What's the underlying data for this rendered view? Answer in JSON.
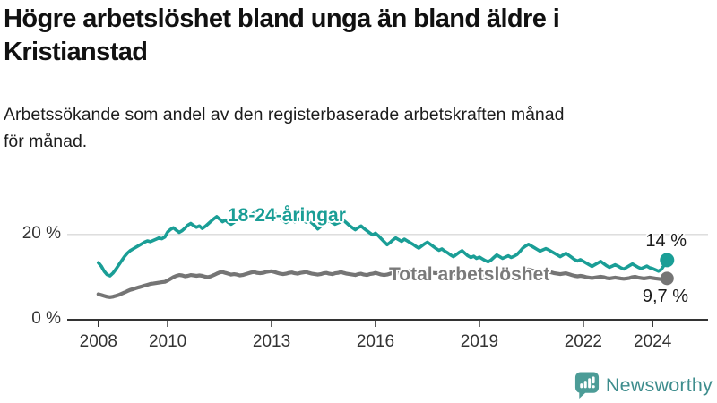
{
  "header": {
    "title": "Högre arbetslöshet bland unga än bland äldre i Kristianstad",
    "subtitle": "Arbetssökande som andel av den registerbaserade arbetskraften månad för månad."
  },
  "footer": {
    "brand": "Newsworthy",
    "logo_icon": "bar-chart-speech-bubble-icon"
  },
  "colors": {
    "youth_line": "#1A9E96",
    "total_line": "#757575",
    "grid": "#d9d9d9",
    "axis": "#333333",
    "text": "#1c1c1c",
    "brand_icon": "#4C9C97",
    "brand_text": "#3E8D8D"
  },
  "chart_data": {
    "type": "line",
    "title": "Högre arbetslöshet bland unga än bland äldre i Kristianstad",
    "subtitle": "Arbetssökande som andel av den registerbaserade arbetskraften månad för månad.",
    "x_unit": "månad",
    "start": "2008-01",
    "end": "2024-06",
    "interval": "monthly",
    "x_ticks": [
      2008,
      2010,
      2013,
      2016,
      2019,
      2022,
      2024
    ],
    "y_ticks": [
      {
        "label": "0 %",
        "value": 0
      },
      {
        "label": "20 %",
        "value": 20
      }
    ],
    "ylim": [
      0,
      28.8
    ],
    "xlim": [
      2007.1,
      2025.6
    ],
    "grid": "y-20-only",
    "legend_position": "inline-on-line",
    "series": [
      {
        "name": "18-24-åringar",
        "end_label": "14 %",
        "end_value": 14.0,
        "color": "#1A9E96",
        "values": [
          13.4,
          12.6,
          11.4,
          10.6,
          10.3,
          10.9,
          11.8,
          12.8,
          13.8,
          14.8,
          15.6,
          16.2,
          16.6,
          17.0,
          17.4,
          17.8,
          18.2,
          18.5,
          18.3,
          18.6,
          18.9,
          19.2,
          19.0,
          19.4,
          20.6,
          21.2,
          21.6,
          21.0,
          20.5,
          20.9,
          21.5,
          22.2,
          22.6,
          22.1,
          21.7,
          22.0,
          21.4,
          21.9,
          22.5,
          23.1,
          23.7,
          24.2,
          23.6,
          23.0,
          23.4,
          22.8,
          22.4,
          22.9,
          23.3,
          23.8,
          24.3,
          23.7,
          24.1,
          24.6,
          25.1,
          25.6,
          26.1,
          25.4,
          24.8,
          25.2,
          24.6,
          25.0,
          24.4,
          23.9,
          23.3,
          22.8,
          23.2,
          23.6,
          23.0,
          23.4,
          23.8,
          23.3,
          22.9,
          23.3,
          22.7,
          22.1,
          21.3,
          21.9,
          22.4,
          22.9,
          23.3,
          22.8,
          22.4,
          22.7,
          23.0,
          23.3,
          22.7,
          22.1,
          21.6,
          21.1,
          21.6,
          22.0,
          21.4,
          20.9,
          20.4,
          19.9,
          20.3,
          19.7,
          19.0,
          18.3,
          17.6,
          18.1,
          18.7,
          19.2,
          18.8,
          18.4,
          18.9,
          18.5,
          18.1,
          17.7,
          17.2,
          16.8,
          17.3,
          17.8,
          18.2,
          17.7,
          17.2,
          16.7,
          16.3,
          16.6,
          16.1,
          15.7,
          15.2,
          14.8,
          15.3,
          15.8,
          16.2,
          15.6,
          15.0,
          14.6,
          14.9,
          14.4,
          14.7,
          14.3,
          13.9,
          13.6,
          14.0,
          14.6,
          15.2,
          14.8,
          14.4,
          14.7,
          15.0,
          14.6,
          14.9,
          15.3,
          16.0,
          16.8,
          17.3,
          17.7,
          17.3,
          16.9,
          16.5,
          16.1,
          16.4,
          16.7,
          16.4,
          16.0,
          15.6,
          15.2,
          14.8,
          15.2,
          15.6,
          15.1,
          14.6,
          14.1,
          13.8,
          14.1,
          13.7,
          13.3,
          12.9,
          12.5,
          12.9,
          13.3,
          13.7,
          13.2,
          12.7,
          12.3,
          12.6,
          12.9,
          12.6,
          12.2,
          11.9,
          12.3,
          12.7,
          13.1,
          12.7,
          12.3,
          12.0,
          12.3,
          12.6,
          12.2,
          12.0,
          11.7,
          11.4,
          11.8,
          12.8,
          14.0
        ]
      },
      {
        "name": "Total arbetslöshet",
        "end_label": "9,7 %",
        "end_value": 9.7,
        "color": "#757575",
        "values": [
          6.0,
          5.8,
          5.6,
          5.4,
          5.3,
          5.4,
          5.6,
          5.8,
          6.1,
          6.4,
          6.7,
          7.0,
          7.2,
          7.4,
          7.6,
          7.8,
          8.0,
          8.2,
          8.4,
          8.5,
          8.6,
          8.7,
          8.8,
          8.9,
          9.2,
          9.6,
          10.0,
          10.3,
          10.5,
          10.4,
          10.2,
          10.3,
          10.5,
          10.4,
          10.3,
          10.4,
          10.3,
          10.1,
          10.0,
          10.2,
          10.5,
          10.8,
          11.1,
          11.2,
          11.0,
          10.8,
          10.6,
          10.7,
          10.6,
          10.4,
          10.5,
          10.7,
          10.9,
          11.1,
          11.2,
          11.0,
          10.9,
          11.0,
          11.2,
          11.3,
          11.4,
          11.2,
          11.0,
          10.8,
          10.7,
          10.8,
          11.0,
          11.1,
          10.9,
          10.8,
          11.0,
          11.1,
          11.2,
          11.0,
          10.8,
          10.7,
          10.6,
          10.7,
          10.9,
          11.0,
          10.8,
          10.7,
          10.9,
          11.0,
          11.2,
          11.0,
          10.8,
          10.7,
          10.6,
          10.5,
          10.7,
          10.8,
          10.6,
          10.5,
          10.7,
          10.8,
          11.0,
          10.8,
          10.6,
          10.5,
          10.6,
          10.8,
          11.0,
          11.1,
          10.9,
          11.0,
          11.2,
          11.3,
          11.5,
          11.3,
          11.1,
          11.0,
          11.1,
          11.3,
          11.4,
          11.2,
          11.0,
          10.9,
          11.0,
          11.2,
          11.3,
          11.1,
          10.9,
          10.7,
          10.8,
          11.0,
          11.1,
          10.9,
          10.7,
          10.6,
          10.7,
          10.8,
          10.9,
          10.7,
          10.5,
          10.4,
          10.5,
          10.7,
          10.9,
          10.8,
          10.6,
          10.7,
          10.8,
          10.9,
          10.8,
          10.9,
          11.2,
          11.5,
          11.7,
          11.8,
          11.6,
          11.4,
          11.3,
          11.2,
          11.3,
          11.4,
          11.3,
          11.1,
          10.9,
          10.8,
          10.7,
          10.8,
          10.9,
          10.7,
          10.5,
          10.3,
          10.2,
          10.3,
          10.2,
          10.0,
          9.9,
          9.8,
          9.9,
          10.0,
          10.1,
          10.0,
          9.8,
          9.7,
          9.8,
          9.9,
          9.8,
          9.7,
          9.6,
          9.7,
          9.8,
          10.0,
          10.1,
          9.9,
          9.8,
          9.7,
          9.8,
          9.9,
          9.8,
          9.7,
          9.6,
          9.5,
          9.6,
          9.7
        ]
      }
    ]
  }
}
